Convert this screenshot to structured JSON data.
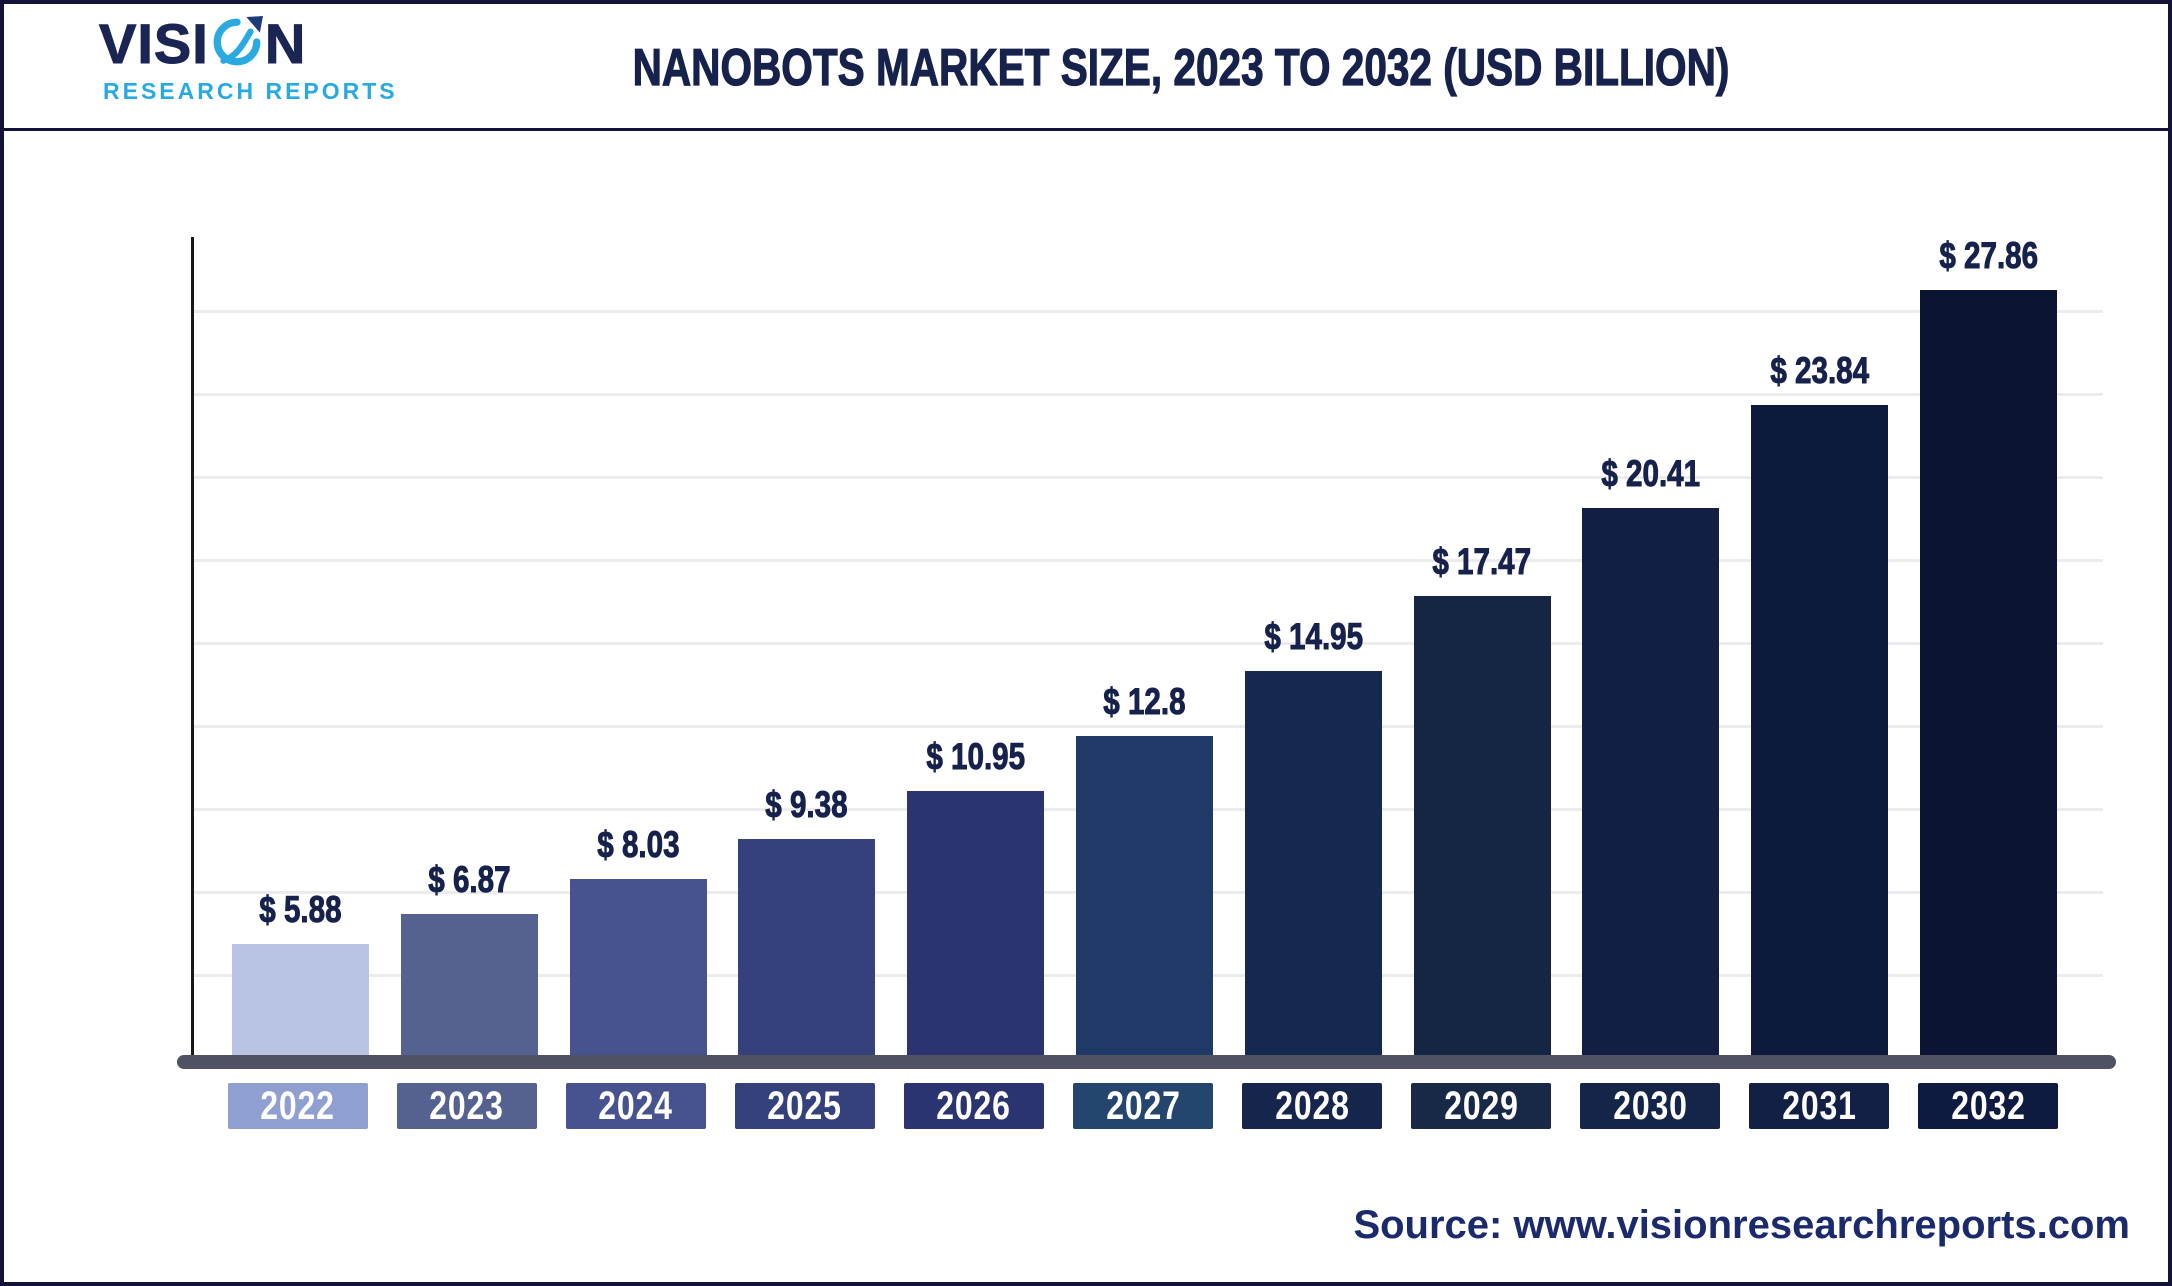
{
  "header": {
    "title": "NANOBOTS MARKET SIZE, 2023 TO 2032 (USD BILLION)",
    "logo": {
      "word_prefix": "VISI",
      "word_suffix": "N",
      "subtitle": "RESEARCH REPORTS",
      "colors": {
        "word": "#1b2553",
        "subtitle": "#29a9e1",
        "swoosh": "#29abe2",
        "arrow": "#1e3a7a"
      }
    }
  },
  "chart_data": {
    "type": "bar",
    "title": "Nanobots Market Size, 2023 to 2032 (USD Billion)",
    "unit": "USD Billion",
    "currency_prefix": "$ ",
    "categories": [
      "2022",
      "2023",
      "2024",
      "2025",
      "2026",
      "2027",
      "2028",
      "2029",
      "2030",
      "2031",
      "2032"
    ],
    "values": [
      5.88,
      6.87,
      8.03,
      9.38,
      10.95,
      12.8,
      14.95,
      17.47,
      20.41,
      23.84,
      27.86
    ],
    "value_labels": [
      "$ 5.88",
      "$ 6.87",
      "$ 8.03",
      "$ 9.38",
      "$ 10.95",
      "$ 12.8",
      "$ 14.95",
      "$ 17.47",
      "$ 20.41",
      "$ 23.84",
      "$ 27.86"
    ],
    "bar_colors": [
      "#b9c3e3",
      "#55618e",
      "#47538f",
      "#35417b",
      "#2b3470",
      "#1f3a66",
      "#142850",
      "#152645",
      "#121f42",
      "#0e1a3b",
      "#0c1434"
    ],
    "label_box_colors": [
      "#8fa0d0",
      "#55618e",
      "#47538f",
      "#35417b",
      "#2b3470",
      "#24466e",
      "#15254c",
      "#182947",
      "#15254a",
      "#112044",
      "#0e1a40"
    ],
    "ylim": [
      0,
      30
    ],
    "grid": "horizontal",
    "legend": "none",
    "y_axis_ticks": []
  },
  "footer": {
    "source": "Source: www.visionresearchreports.com"
  }
}
